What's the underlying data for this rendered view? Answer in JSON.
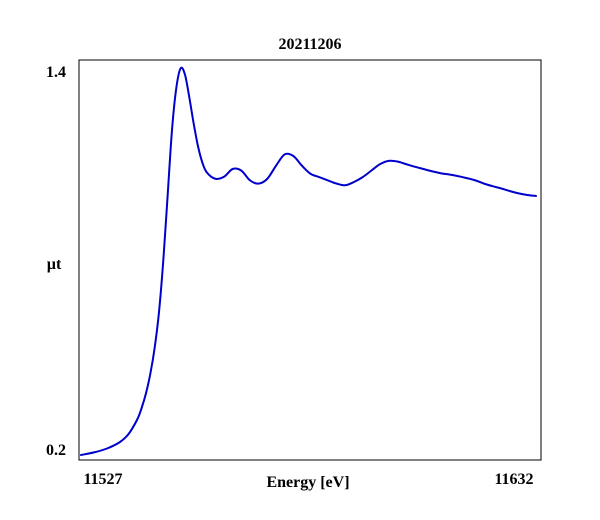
{
  "chart_data": {
    "type": "line",
    "title": "20211206",
    "xlabel": "Energy [eV]",
    "ylabel": "µt",
    "xlim": [
      11527,
      11632
    ],
    "ylim": [
      0.2,
      1.4
    ],
    "x_ticks": [
      "11527",
      "11632"
    ],
    "y_ticks": [
      "0.2",
      "1.4"
    ],
    "grid": false,
    "line_color": "#0000cc",
    "series": [
      {
        "x": [
          11527,
          11530,
          11533,
          11536,
          11538,
          11540,
          11541,
          11542,
          11543,
          11544,
          11545,
          11546,
          11547,
          11548,
          11549,
          11550,
          11551,
          11552,
          11553,
          11554,
          11555,
          11556,
          11558,
          11560,
          11562,
          11564,
          11566,
          11568,
          11570,
          11572,
          11574,
          11576,
          11578,
          11580,
          11582,
          11584,
          11586,
          11588,
          11590,
          11592,
          11594,
          11596,
          11598,
          11600,
          11602,
          11604,
          11606,
          11608,
          11610,
          11612,
          11614,
          11616,
          11618,
          11620,
          11622,
          11624,
          11626,
          11628,
          11630,
          11632
        ],
        "y": [
          0.2,
          0.208,
          0.22,
          0.24,
          0.265,
          0.31,
          0.345,
          0.39,
          0.45,
          0.53,
          0.64,
          0.8,
          1.0,
          1.2,
          1.33,
          1.39,
          1.37,
          1.3,
          1.22,
          1.15,
          1.1,
          1.07,
          1.05,
          1.056,
          1.08,
          1.075,
          1.045,
          1.035,
          1.05,
          1.09,
          1.125,
          1.12,
          1.09,
          1.065,
          1.055,
          1.045,
          1.035,
          1.03,
          1.04,
          1.055,
          1.075,
          1.095,
          1.105,
          1.103,
          1.095,
          1.087,
          1.08,
          1.073,
          1.067,
          1.063,
          1.058,
          1.052,
          1.045,
          1.035,
          1.027,
          1.02,
          1.012,
          1.005,
          1.0,
          0.997
        ]
      }
    ]
  }
}
